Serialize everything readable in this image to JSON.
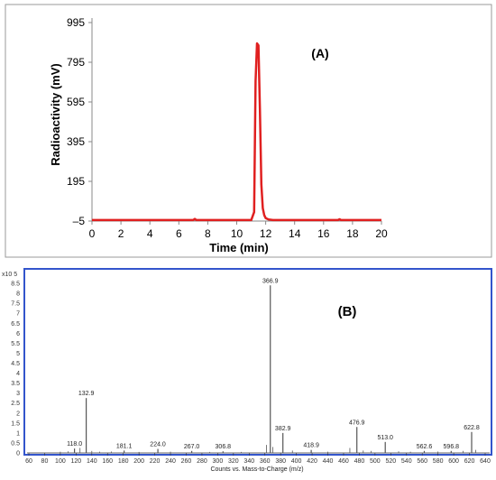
{
  "chart_data": [
    {
      "type": "line",
      "panel_label": "(A)",
      "xlabel": "Time (min)",
      "ylabel": "Radioactivity (mV)",
      "xlim": [
        0,
        20
      ],
      "ylim": [
        -5,
        995
      ],
      "x_ticks": [
        0,
        2,
        4,
        6,
        8,
        10,
        12,
        14,
        16,
        18,
        20
      ],
      "y_ticks": [
        -5,
        195,
        395,
        595,
        795,
        995
      ],
      "x_tick_labels": [
        "0",
        "2",
        "4",
        "6",
        "8",
        "10",
        "12",
        "14",
        "16",
        "18",
        "20"
      ],
      "y_tick_labels": [
        "–5",
        "195",
        "395",
        "595",
        "795",
        "995"
      ],
      "grid": false,
      "line_color": "#e02020",
      "series": [
        {
          "x": [
            0,
            7.0,
            7.1,
            7.2,
            9.5,
            11.0,
            11.2,
            11.3,
            11.4,
            11.5,
            11.6,
            11.7,
            11.8,
            11.9,
            12.0,
            12.2,
            12.5,
            13.0,
            17.0,
            17.1,
            17.2,
            20.0
          ],
          "y": [
            0,
            0,
            6,
            0,
            0,
            0,
            40,
            700,
            890,
            880,
            560,
            180,
            60,
            25,
            10,
            3,
            0,
            0,
            0,
            4,
            0,
            0
          ]
        }
      ]
    },
    {
      "type": "bar",
      "panel_label": "(B)",
      "xlabel": "Counts vs. Mass-to-Charge (m/z)",
      "y_scale_label": "x10 5",
      "xlim": [
        60,
        640
      ],
      "ylim": [
        0,
        9
      ],
      "x_ticks": [
        60,
        80,
        100,
        120,
        140,
        160,
        180,
        200,
        220,
        240,
        260,
        280,
        300,
        320,
        340,
        360,
        380,
        400,
        420,
        440,
        460,
        480,
        500,
        520,
        540,
        560,
        580,
        600,
        620,
        640
      ],
      "x_tick_labels": [
        "60",
        "80",
        "100",
        "120",
        "140",
        "160",
        "180",
        "200",
        "220",
        "240",
        "260",
        "280",
        "300",
        "320",
        "340",
        "360",
        "380",
        "400",
        "420",
        "440",
        "460",
        "480",
        "500",
        "520",
        "540",
        "560",
        "580",
        "600",
        "620",
        "640"
      ],
      "y_ticks": [
        0,
        0.5,
        1,
        1.5,
        2,
        2.5,
        3,
        3.5,
        4,
        4.5,
        5,
        5.5,
        6,
        6.5,
        7,
        7.5,
        8,
        8.5
      ],
      "y_tick_labels": [
        "0",
        "0.5",
        "1",
        "1.5",
        "2",
        "2.5",
        "3",
        "3.5",
        "4",
        "4.5",
        "5",
        "5.5",
        "6",
        "6.5",
        "7",
        "7.5",
        "8",
        "8.5"
      ],
      "grid": false,
      "peak_color": "#555555",
      "frame_color": "#3355cc",
      "peaks": [
        {
          "mz": 118.0,
          "value": 0.22,
          "label": "118.0"
        },
        {
          "mz": 132.9,
          "value": 2.75,
          "label": "132.9"
        },
        {
          "mz": 181.1,
          "value": 0.12,
          "label": "181.1"
        },
        {
          "mz": 224.0,
          "value": 0.2,
          "label": "224.0"
        },
        {
          "mz": 267.0,
          "value": 0.1,
          "label": "267.0"
        },
        {
          "mz": 306.8,
          "value": 0.08,
          "label": "306.8"
        },
        {
          "mz": 366.9,
          "value": 8.4,
          "label": "366.9"
        },
        {
          "mz": 382.9,
          "value": 1.0,
          "label": "382.9"
        },
        {
          "mz": 418.9,
          "value": 0.15,
          "label": "418.9"
        },
        {
          "mz": 476.9,
          "value": 1.3,
          "label": "476.9"
        },
        {
          "mz": 513.0,
          "value": 0.55,
          "label": "513.0"
        },
        {
          "mz": 562.6,
          "value": 0.1,
          "label": "562.6"
        },
        {
          "mz": 596.8,
          "value": 0.1,
          "label": "596.8"
        },
        {
          "mz": 622.8,
          "value": 1.05,
          "label": "622.8"
        }
      ],
      "minor_peaks": [
        {
          "mz": 100,
          "value": 0.06
        },
        {
          "mz": 110,
          "value": 0.08
        },
        {
          "mz": 125,
          "value": 0.25
        },
        {
          "mz": 140,
          "value": 0.1
        },
        {
          "mz": 150,
          "value": 0.06
        },
        {
          "mz": 165,
          "value": 0.07
        },
        {
          "mz": 200,
          "value": 0.05
        },
        {
          "mz": 240,
          "value": 0.06
        },
        {
          "mz": 290,
          "value": 0.05
        },
        {
          "mz": 330,
          "value": 0.05
        },
        {
          "mz": 362,
          "value": 0.4
        },
        {
          "mz": 370,
          "value": 0.3
        },
        {
          "mz": 395,
          "value": 0.12
        },
        {
          "mz": 440,
          "value": 0.06
        },
        {
          "mz": 468,
          "value": 0.25
        },
        {
          "mz": 485,
          "value": 0.12
        },
        {
          "mz": 495,
          "value": 0.1
        },
        {
          "mz": 530,
          "value": 0.08
        },
        {
          "mz": 545,
          "value": 0.06
        },
        {
          "mz": 580,
          "value": 0.07
        },
        {
          "mz": 612,
          "value": 0.1
        },
        {
          "mz": 628,
          "value": 0.15
        }
      ]
    }
  ]
}
